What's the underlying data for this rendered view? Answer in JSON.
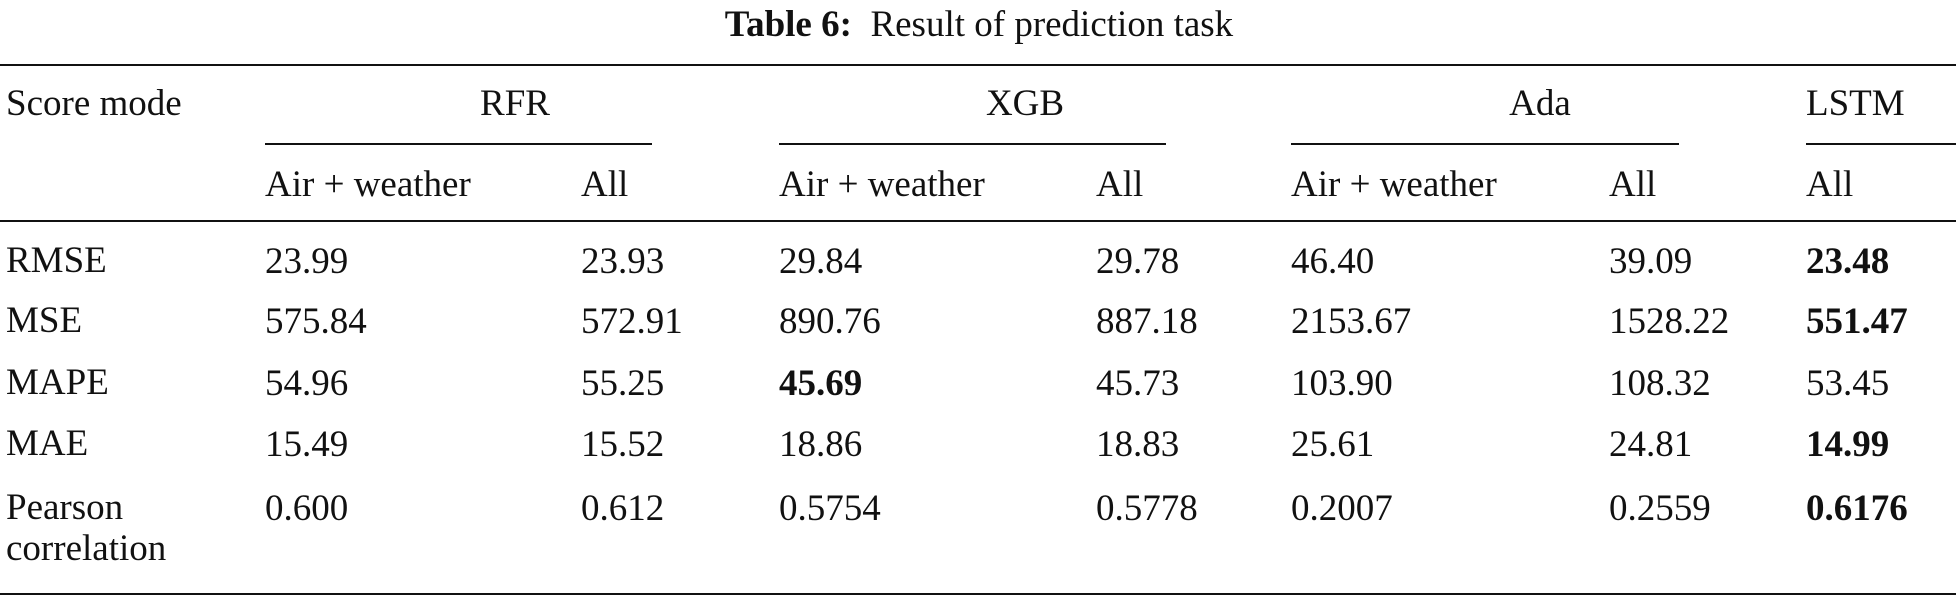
{
  "caption": {
    "label": "Table 6:",
    "text": "Result of prediction task"
  },
  "table": {
    "header": {
      "row_label": "Score mode",
      "groups": [
        "RFR",
        "XGB",
        "Ada",
        "LSTM"
      ],
      "subheaders": [
        "Air + weather",
        "All",
        "Air + weather",
        "All",
        "Air + weather",
        "All",
        "All"
      ]
    },
    "rows": [
      [
        "RMSE",
        "23.99",
        "23.93",
        "29.84",
        "29.78",
        "46.40",
        "39.09",
        "23.48"
      ],
      [
        "MSE",
        "575.84",
        "572.91",
        "890.76",
        "887.18",
        "2153.67",
        "1528.22",
        "551.47"
      ],
      [
        "MAPE",
        "54.96",
        "55.25",
        "45.69",
        "45.73",
        "103.90",
        "108.32",
        "53.45"
      ],
      [
        "MAE",
        "15.49",
        "15.52",
        "18.86",
        "18.83",
        "25.61",
        "24.81",
        "14.99"
      ],
      [
        "Pearson correlation",
        "0.600",
        "0.612",
        "0.5754",
        "0.5778",
        "0.2007",
        "0.2559",
        "0.6176"
      ]
    ]
  }
}
